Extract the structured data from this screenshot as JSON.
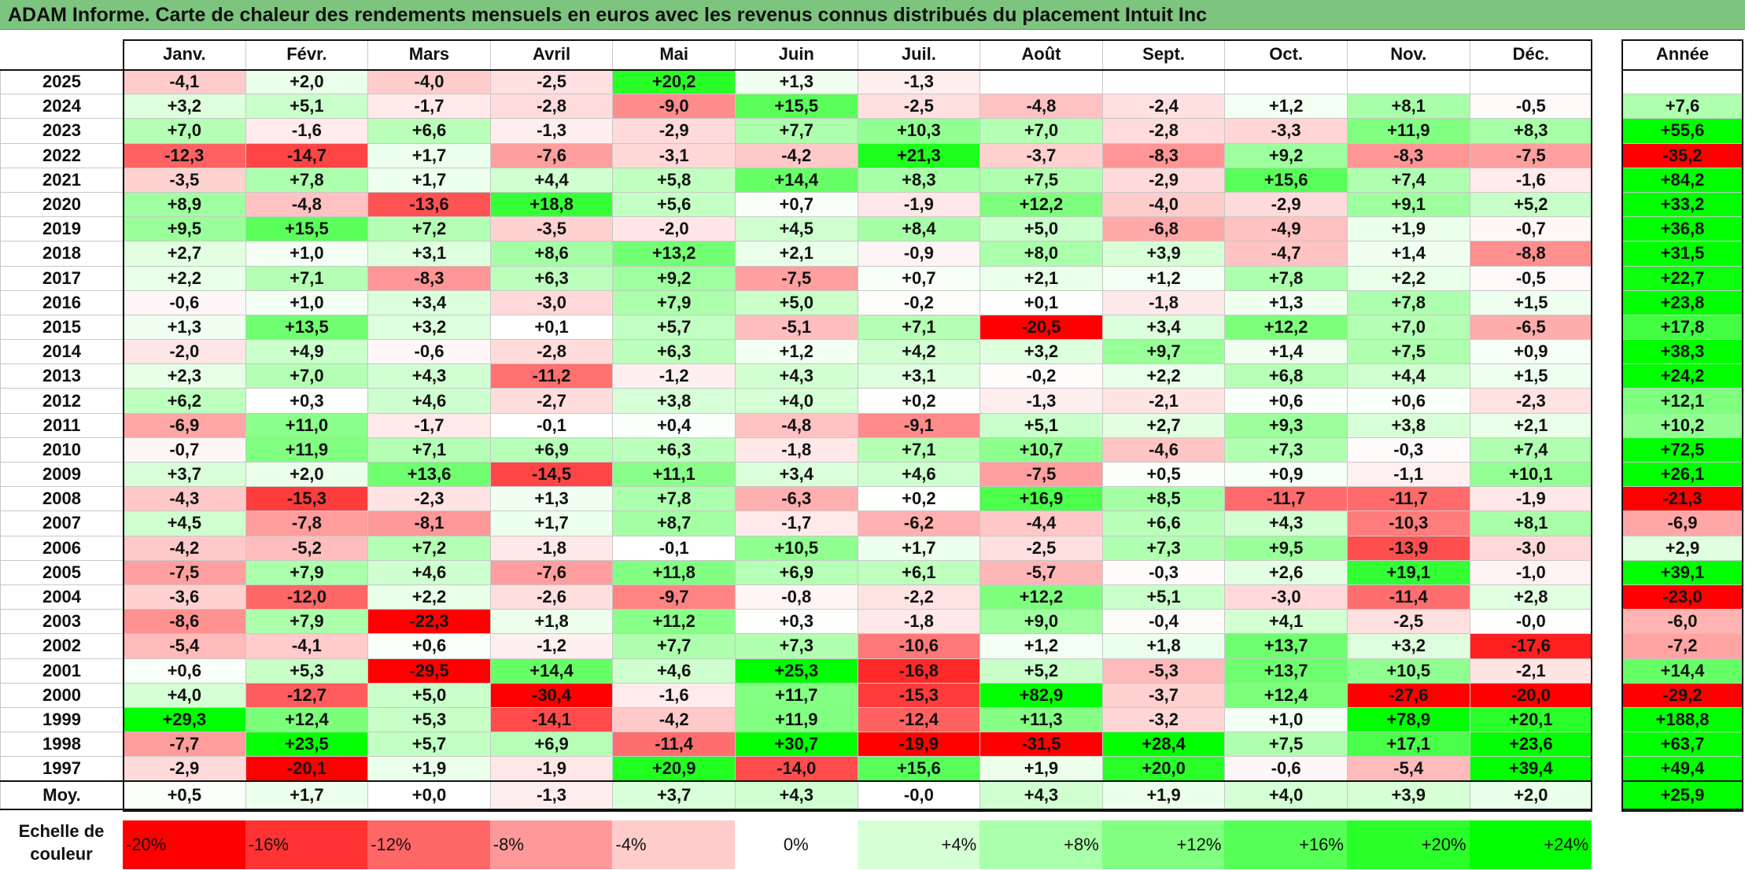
{
  "title": "ADAM Informe. Carte de chaleur des rendements mensuels en euros avec les revenus connus distribués du placement Intuit Inc",
  "colors": {
    "title_bar": "#7dc47f",
    "max_red": "#ff0000",
    "max_green": "#00ff00",
    "neutral": "#ffffff"
  },
  "chart_data": {
    "type": "heatmap",
    "columns": [
      "Janv.",
      "Févr.",
      "Mars",
      "Avril",
      "Mai",
      "Juin",
      "Juil.",
      "Août",
      "Sept.",
      "Oct.",
      "Nov.",
      "Déc."
    ],
    "annual_header": "Année",
    "rows": [
      {
        "year": "2025",
        "values": [
          "-4,1",
          "+2,0",
          "-4,0",
          "-2,5",
          "+20,2",
          "+1,3",
          "-1,3",
          "",
          "",
          "",
          "",
          ""
        ],
        "annual": ""
      },
      {
        "year": "2024",
        "values": [
          "+3,2",
          "+5,1",
          "-1,7",
          "-2,8",
          "-9,0",
          "+15,5",
          "-2,5",
          "-4,8",
          "-2,4",
          "+1,2",
          "+8,1",
          "-0,5"
        ],
        "annual": "+7,6"
      },
      {
        "year": "2023",
        "values": [
          "+7,0",
          "-1,6",
          "+6,6",
          "-1,3",
          "-2,9",
          "+7,7",
          "+10,3",
          "+7,0",
          "-2,8",
          "-3,3",
          "+11,9",
          "+8,3"
        ],
        "annual": "+55,6"
      },
      {
        "year": "2022",
        "values": [
          "-12,3",
          "-14,7",
          "+1,7",
          "-7,6",
          "-3,1",
          "-4,2",
          "+21,3",
          "-3,7",
          "-8,3",
          "+9,2",
          "-8,3",
          "-7,5"
        ],
        "annual": "-35,2"
      },
      {
        "year": "2021",
        "values": [
          "-3,5",
          "+7,8",
          "+1,7",
          "+4,4",
          "+5,8",
          "+14,4",
          "+8,3",
          "+7,5",
          "-2,9",
          "+15,6",
          "+7,4",
          "-1,6"
        ],
        "annual": "+84,2"
      },
      {
        "year": "2020",
        "values": [
          "+8,9",
          "-4,8",
          "-13,6",
          "+18,8",
          "+5,6",
          "+0,7",
          "-1,9",
          "+12,2",
          "-4,0",
          "-2,9",
          "+9,1",
          "+5,2"
        ],
        "annual": "+33,2"
      },
      {
        "year": "2019",
        "values": [
          "+9,5",
          "+15,5",
          "+7,2",
          "-3,5",
          "-2,0",
          "+4,5",
          "+8,4",
          "+5,0",
          "-6,8",
          "-4,9",
          "+1,9",
          "-0,7"
        ],
        "annual": "+36,8"
      },
      {
        "year": "2018",
        "values": [
          "+2,7",
          "+1,0",
          "+3,1",
          "+8,6",
          "+13,2",
          "+2,1",
          "-0,9",
          "+8,0",
          "+3,9",
          "-4,7",
          "+1,4",
          "-8,8"
        ],
        "annual": "+31,5"
      },
      {
        "year": "2017",
        "values": [
          "+2,2",
          "+7,1",
          "-8,3",
          "+6,3",
          "+9,2",
          "-7,5",
          "+0,7",
          "+2,1",
          "+1,2",
          "+7,8",
          "+2,2",
          "-0,5"
        ],
        "annual": "+22,7"
      },
      {
        "year": "2016",
        "values": [
          "-0,6",
          "+1,0",
          "+3,4",
          "-3,0",
          "+7,9",
          "+5,0",
          "-0,2",
          "+0,1",
          "-1,8",
          "+1,3",
          "+7,8",
          "+1,5"
        ],
        "annual": "+23,8"
      },
      {
        "year": "2015",
        "values": [
          "+1,3",
          "+13,5",
          "+3,2",
          "+0,1",
          "+5,7",
          "-5,1",
          "+7,1",
          "-20,5",
          "+3,4",
          "+12,2",
          "+7,0",
          "-6,5"
        ],
        "annual": "+17,8"
      },
      {
        "year": "2014",
        "values": [
          "-2,0",
          "+4,9",
          "-0,6",
          "-2,8",
          "+6,3",
          "+1,2",
          "+4,2",
          "+3,2",
          "+9,7",
          "+1,4",
          "+7,5",
          "+0,9"
        ],
        "annual": "+38,3"
      },
      {
        "year": "2013",
        "values": [
          "+2,3",
          "+7,0",
          "+4,3",
          "-11,2",
          "-1,2",
          "+4,3",
          "+3,1",
          "-0,2",
          "+2,2",
          "+6,8",
          "+4,4",
          "+1,5"
        ],
        "annual": "+24,2"
      },
      {
        "year": "2012",
        "values": [
          "+6,2",
          "+0,3",
          "+4,6",
          "-2,7",
          "+3,8",
          "+4,0",
          "+0,2",
          "-1,3",
          "-2,1",
          "+0,6",
          "+0,6",
          "-2,3"
        ],
        "annual": "+12,1"
      },
      {
        "year": "2011",
        "values": [
          "-6,9",
          "+11,0",
          "-1,7",
          "-0,1",
          "+0,4",
          "-4,8",
          "-9,1",
          "+5,1",
          "+2,7",
          "+9,3",
          "+3,8",
          "+2,1"
        ],
        "annual": "+10,2"
      },
      {
        "year": "2010",
        "values": [
          "-0,7",
          "+11,9",
          "+7,1",
          "+6,9",
          "+6,3",
          "-1,8",
          "+7,1",
          "+10,7",
          "-4,6",
          "+7,3",
          "-0,3",
          "+7,4"
        ],
        "annual": "+72,5"
      },
      {
        "year": "2009",
        "values": [
          "+3,7",
          "+2,0",
          "+13,6",
          "-14,5",
          "+11,1",
          "+3,4",
          "+4,6",
          "-7,5",
          "+0,5",
          "+0,9",
          "-1,1",
          "+10,1"
        ],
        "annual": "+26,1"
      },
      {
        "year": "2008",
        "values": [
          "-4,3",
          "-15,3",
          "-2,3",
          "+1,3",
          "+7,8",
          "-6,3",
          "+0,2",
          "+16,9",
          "+8,5",
          "-11,7",
          "-11,7",
          "-1,9"
        ],
        "annual": "-21,3"
      },
      {
        "year": "2007",
        "values": [
          "+4,5",
          "-7,8",
          "-8,1",
          "+1,7",
          "+8,7",
          "-1,7",
          "-6,2",
          "-4,4",
          "+6,6",
          "+4,3",
          "-10,3",
          "+8,1"
        ],
        "annual": "-6,9"
      },
      {
        "year": "2006",
        "values": [
          "-4,2",
          "-5,2",
          "+7,2",
          "-1,8",
          "-0,1",
          "+10,5",
          "+1,7",
          "-2,5",
          "+7,3",
          "+9,5",
          "-13,9",
          "-3,0"
        ],
        "annual": "+2,9"
      },
      {
        "year": "2005",
        "values": [
          "-7,5",
          "+7,9",
          "+4,6",
          "-7,6",
          "+11,8",
          "+6,9",
          "+6,1",
          "-5,7",
          "-0,3",
          "+2,6",
          "+19,1",
          "-1,0"
        ],
        "annual": "+39,1"
      },
      {
        "year": "2004",
        "values": [
          "-3,6",
          "-12,0",
          "+2,2",
          "-2,6",
          "-9,7",
          "-0,8",
          "-2,2",
          "+12,2",
          "+5,1",
          "-3,0",
          "-11,4",
          "+2,8"
        ],
        "annual": "-23,0"
      },
      {
        "year": "2003",
        "values": [
          "-8,6",
          "+7,9",
          "-22,3",
          "+1,8",
          "+11,2",
          "+0,3",
          "-1,8",
          "+9,0",
          "-0,4",
          "+4,1",
          "-2,5",
          "-0,0"
        ],
        "annual": "-6,0"
      },
      {
        "year": "2002",
        "values": [
          "-5,4",
          "-4,1",
          "+0,6",
          "-1,2",
          "+7,7",
          "+7,3",
          "-10,6",
          "+1,2",
          "+1,8",
          "+13,7",
          "+3,2",
          "-17,6"
        ],
        "annual": "-7,2"
      },
      {
        "year": "2001",
        "values": [
          "+0,6",
          "+5,3",
          "-29,5",
          "+14,4",
          "+4,6",
          "+25,3",
          "-16,8",
          "+5,2",
          "-5,3",
          "+13,7",
          "+10,5",
          "-2,1"
        ],
        "annual": "+14,4"
      },
      {
        "year": "2000",
        "values": [
          "+4,0",
          "-12,7",
          "+5,0",
          "-30,4",
          "-1,6",
          "+11,7",
          "-15,3",
          "+82,9",
          "-3,7",
          "+12,4",
          "-27,6",
          "-20,0"
        ],
        "annual": "-29,2"
      },
      {
        "year": "1999",
        "values": [
          "+29,3",
          "+12,4",
          "+5,3",
          "-14,1",
          "-4,2",
          "+11,9",
          "-12,4",
          "+11,3",
          "-3,2",
          "+1,0",
          "+78,9",
          "+20,1"
        ],
        "annual": "+188,8"
      },
      {
        "year": "1998",
        "values": [
          "-7,7",
          "+23,5",
          "+5,7",
          "+6,9",
          "-11,4",
          "+30,7",
          "-19,9",
          "-31,5",
          "+28,4",
          "+7,5",
          "+17,1",
          "+23,6"
        ],
        "annual": "+63,7"
      },
      {
        "year": "1997",
        "values": [
          "-2,9",
          "-20,1",
          "+1,9",
          "-1,9",
          "+20,9",
          "-14,0",
          "+15,6",
          "+1,9",
          "+20,0",
          "-0,6",
          "-5,4",
          "+39,4"
        ],
        "annual": "+49,4"
      }
    ],
    "average": {
      "label": "Moy.",
      "values": [
        "+0,5",
        "+1,7",
        "+0,0",
        "-1,3",
        "+3,7",
        "+4,3",
        "-0,0",
        "+4,3",
        "+1,9",
        "+4,0",
        "+3,9",
        "+2,0"
      ],
      "annual": "+25,9"
    },
    "color_scale": {
      "label": "Echelle de couleur",
      "stops": [
        {
          "label": "-20%",
          "value": -20,
          "color": "#ff0000"
        },
        {
          "label": "-16%",
          "value": -16,
          "color": "#ff3333"
        },
        {
          "label": "-12%",
          "value": -12,
          "color": "#ff6666"
        },
        {
          "label": "-8%",
          "value": -8,
          "color": "#ff9999"
        },
        {
          "label": "-4%",
          "value": -4,
          "color": "#ffcccc"
        },
        {
          "label": "0%",
          "value": 0,
          "color": "#ffffff"
        },
        {
          "label": "+4%",
          "value": 4,
          "color": "#d5ffd5"
        },
        {
          "label": "+8%",
          "value": 8,
          "color": "#aaffaa"
        },
        {
          "label": "+12%",
          "value": 12,
          "color": "#80ff80"
        },
        {
          "label": "+16%",
          "value": 16,
          "color": "#55ff55"
        },
        {
          "label": "+20%",
          "value": 20,
          "color": "#2aff2a"
        },
        {
          "label": "+24%",
          "value": 24,
          "color": "#00ff00"
        }
      ]
    }
  }
}
